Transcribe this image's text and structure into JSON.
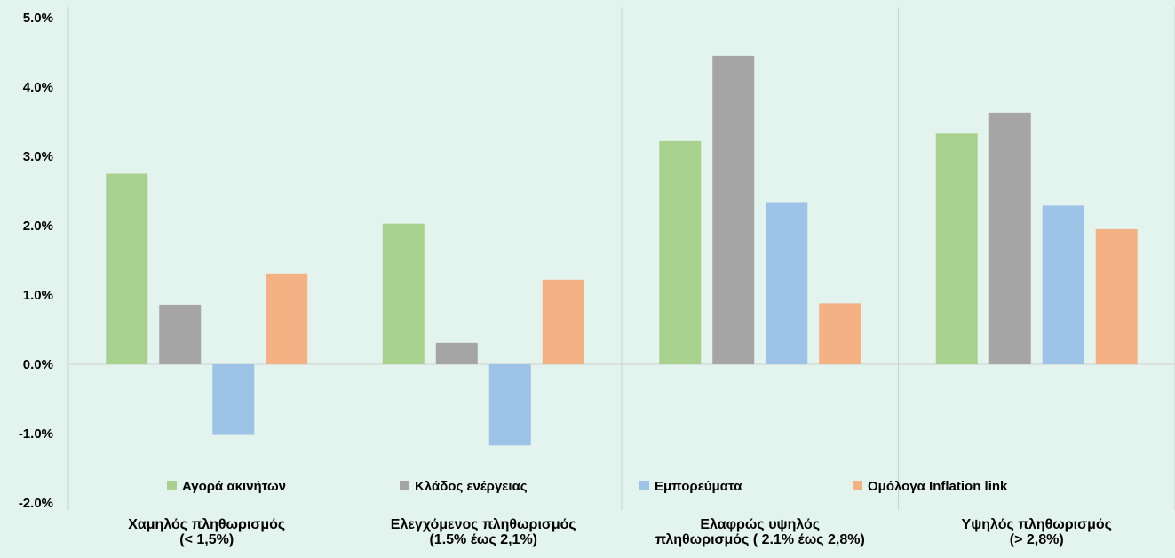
{
  "chart_data": {
    "type": "bar",
    "title": "",
    "xlabel": "",
    "ylabel": "",
    "ylim": [
      -2.0,
      5.0
    ],
    "yticks": [
      "5.0%",
      "4.0%",
      "3.0%",
      "2.0%",
      "1.0%",
      "0.0%",
      "-1.0%",
      "-2.0%"
    ],
    "ytick_values": [
      5,
      4,
      3,
      2,
      1,
      0,
      -1,
      -2
    ],
    "grid": false,
    "legend_position": "bottom-inside",
    "categories": [
      [
        "Χαμηλός πληθωρισμός",
        "(< 1,5%)"
      ],
      [
        "Ελεγχόμενος πληθωρισμός",
        "(1.5%  έως 2,1%)"
      ],
      [
        "Ελαφρώς υψηλός",
        "πληθωρισμός ( 2.1% έως 2,8%)"
      ],
      [
        "Υψηλός πληθωρισμός",
        "(> 2,8%)"
      ]
    ],
    "series": [
      {
        "name": "Αγορά ακινήτων",
        "color": "#a9d18e",
        "values": [
          2.75,
          2.03,
          3.22,
          3.33
        ]
      },
      {
        "name": "Κλάδος ενέργειας",
        "color": "#a5a5a5",
        "values": [
          0.86,
          0.31,
          4.45,
          3.63
        ]
      },
      {
        "name": "Εμπορεύματα",
        "color": "#9dc3e6",
        "values": [
          -1.02,
          -1.17,
          2.34,
          2.29
        ]
      },
      {
        "name": "Ομόλογα Inflation link",
        "color": "#f4b183",
        "values": [
          1.31,
          1.22,
          0.88,
          1.95
        ]
      }
    ]
  }
}
